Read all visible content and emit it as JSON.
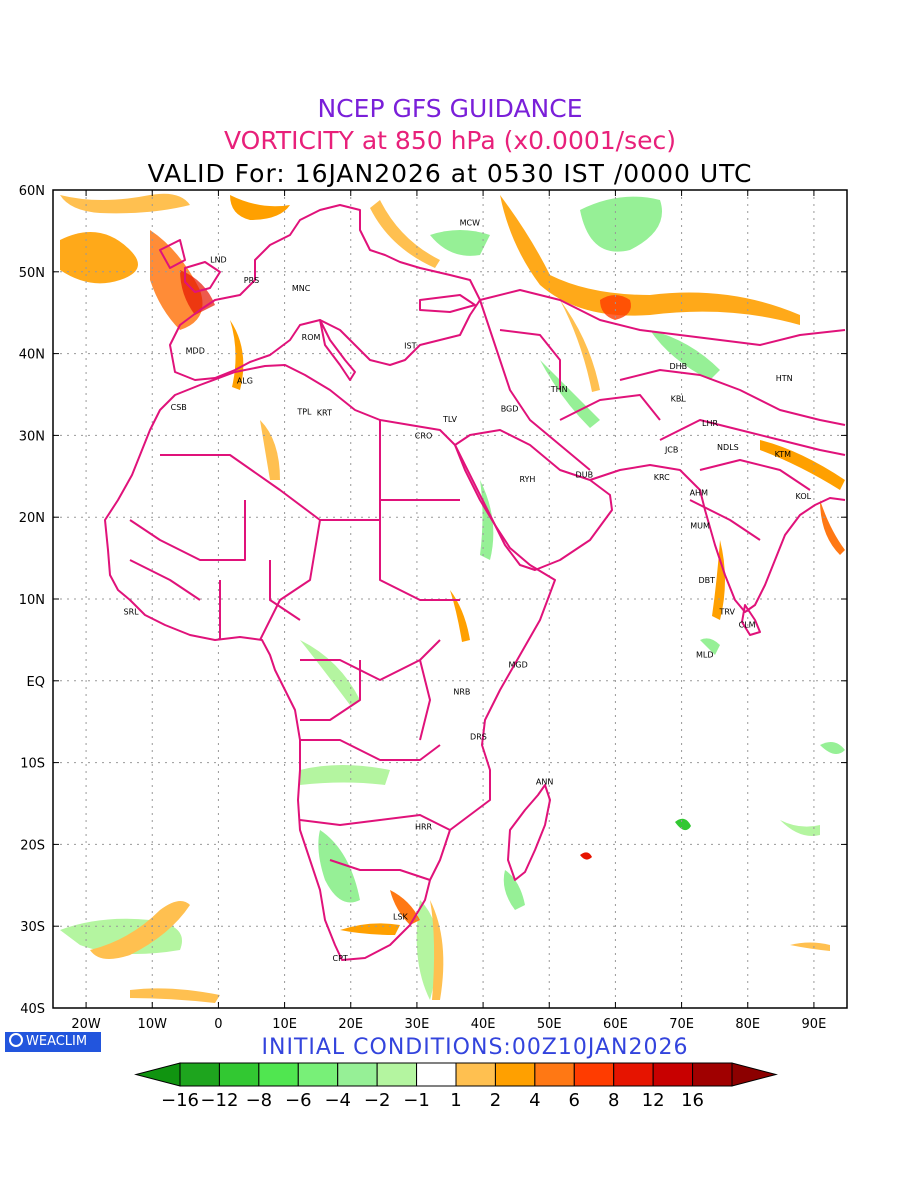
{
  "header": {
    "line1": "NCEP GFS GUIDANCE",
    "line2": "VORTICITY at 850 hPa (x0.0001/sec)",
    "line3": "VALID For: 16JAN2026 at 0530 IST /0000 UTC"
  },
  "map": {
    "lat_labels": [
      "60N",
      "50N",
      "40N",
      "30N",
      "20N",
      "10N",
      "EQ",
      "10S",
      "20S",
      "30S",
      "40S"
    ],
    "lon_labels": [
      "20W",
      "10W",
      "0",
      "10E",
      "20E",
      "30E",
      "40E",
      "50E",
      "60E",
      "70E",
      "80E",
      "90E"
    ],
    "lat_range": [
      -40,
      60
    ],
    "lon_range": [
      -25,
      95
    ],
    "gridlines": "dotted",
    "coastline_color": "#e0127a",
    "cities": [
      {
        "name": "MCW",
        "lon": 38,
        "lat": 56
      },
      {
        "name": "LND",
        "lon": 0,
        "lat": 51.5
      },
      {
        "name": "PRS",
        "lon": 5,
        "lat": 49
      },
      {
        "name": "MNC",
        "lon": 12.5,
        "lat": 48
      },
      {
        "name": "MDD",
        "lon": -3.5,
        "lat": 40.4
      },
      {
        "name": "ROM",
        "lon": 14,
        "lat": 42
      },
      {
        "name": "IST",
        "lon": 29,
        "lat": 41
      },
      {
        "name": "ALG",
        "lon": 4,
        "lat": 36.7
      },
      {
        "name": "CSB",
        "lon": -6,
        "lat": 33.5
      },
      {
        "name": "TPL",
        "lon": 13,
        "lat": 32.9
      },
      {
        "name": "KRT",
        "lon": 16,
        "lat": 32.8
      },
      {
        "name": "TLV",
        "lon": 35,
        "lat": 32
      },
      {
        "name": "CRO",
        "lon": 31,
        "lat": 30
      },
      {
        "name": "BGD",
        "lon": 44,
        "lat": 33.3
      },
      {
        "name": "THN",
        "lon": 51.5,
        "lat": 35.7
      },
      {
        "name": "DHB",
        "lon": 69.5,
        "lat": 38.5
      },
      {
        "name": "KBL",
        "lon": 69.5,
        "lat": 34.5
      },
      {
        "name": "HTN",
        "lon": 85.5,
        "lat": 37
      },
      {
        "name": "LHR",
        "lon": 74.3,
        "lat": 31.5
      },
      {
        "name": "NDLS",
        "lon": 77,
        "lat": 28.6
      },
      {
        "name": "JCB",
        "lon": 68.5,
        "lat": 28.3
      },
      {
        "name": "KTM",
        "lon": 85.3,
        "lat": 27.7
      },
      {
        "name": "RYH",
        "lon": 46.7,
        "lat": 24.7
      },
      {
        "name": "DUB",
        "lon": 55.3,
        "lat": 25.2
      },
      {
        "name": "KRC",
        "lon": 67,
        "lat": 24.9
      },
      {
        "name": "AHM",
        "lon": 72.6,
        "lat": 23
      },
      {
        "name": "KOL",
        "lon": 88.4,
        "lat": 22.6
      },
      {
        "name": "MUM",
        "lon": 72.8,
        "lat": 19
      },
      {
        "name": "DBT",
        "lon": 73.8,
        "lat": 12.3
      },
      {
        "name": "TRV",
        "lon": 76.9,
        "lat": 8.5
      },
      {
        "name": "CLM",
        "lon": 79.9,
        "lat": 6.9
      },
      {
        "name": "MLD",
        "lon": 73.5,
        "lat": 3.2
      },
      {
        "name": "SRL",
        "lon": -13.2,
        "lat": 8.5
      },
      {
        "name": "MGD",
        "lon": 45.3,
        "lat": 2
      },
      {
        "name": "NRB",
        "lon": 36.8,
        "lat": -1.3
      },
      {
        "name": "DRS",
        "lon": 39.3,
        "lat": -6.8
      },
      {
        "name": "ANN",
        "lon": 49.3,
        "lat": -12.3
      },
      {
        "name": "HRR",
        "lon": 31,
        "lat": -17.8
      },
      {
        "name": "LSK",
        "lon": 27.5,
        "lat": -28.8
      },
      {
        "name": "CPT",
        "lon": 18.4,
        "lat": -33.9
      }
    ]
  },
  "logo_text": "WEACLIM",
  "footer": {
    "init": "INITIAL CONDITIONS:00Z10JAN2026"
  },
  "colorbar": {
    "ticks": [
      "−16",
      "−12",
      "−8",
      "−6",
      "−4",
      "−2",
      "−1",
      "1",
      "2",
      "4",
      "6",
      "8",
      "12",
      "16"
    ],
    "colors": [
      "#1ea51e",
      "#32c832",
      "#50e650",
      "#78f078",
      "#96f096",
      "#b4f5a0",
      "#ffffff",
      "#ffc050",
      "#ffa000",
      "#ff7814",
      "#ff3c00",
      "#e61400",
      "#c80000",
      "#a00000"
    ],
    "under_color": "#109410",
    "over_color": "#8c0000"
  }
}
